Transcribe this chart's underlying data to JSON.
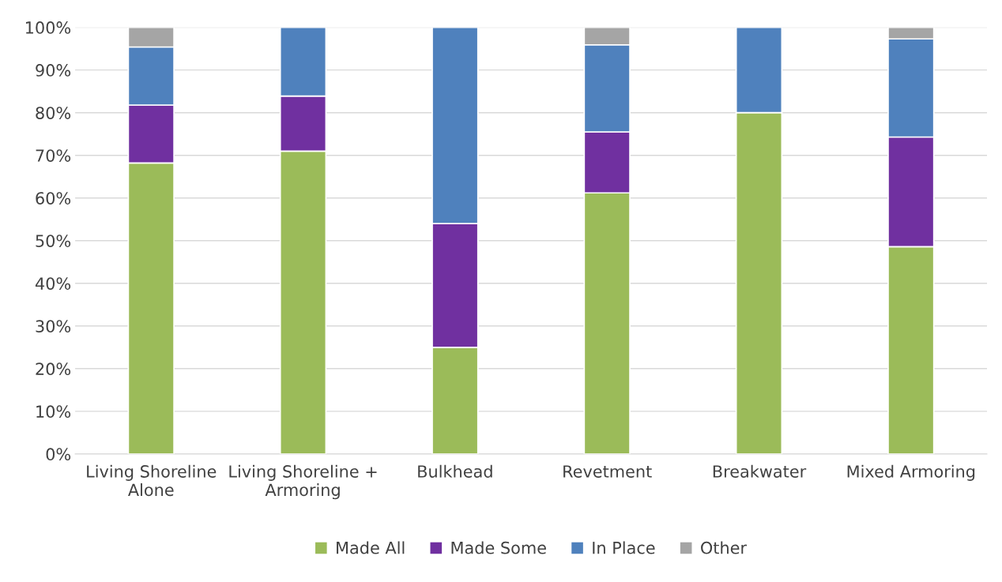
{
  "chart_data": {
    "type": "bar",
    "stacked": true,
    "categories": [
      "Living Shoreline\nAlone",
      "Living Shoreline +\nArmoring",
      "Bulkhead",
      "Revetment",
      "Breakwater",
      "Mixed Armoring"
    ],
    "series": [
      {
        "name": "Made All",
        "color": "#9bbb59",
        "values": [
          68.2,
          71.0,
          25.0,
          61.2,
          80.0,
          48.6
        ]
      },
      {
        "name": "Made Some",
        "color": "#7030a0",
        "values": [
          13.6,
          12.9,
          29.0,
          14.3,
          0,
          25.7
        ]
      },
      {
        "name": "In Place",
        "color": "#4f81bd",
        "values": [
          13.6,
          16.1,
          46.0,
          20.4,
          20.0,
          23.0
        ]
      },
      {
        "name": "Other",
        "color": "#a5a5a5",
        "values": [
          4.6,
          0,
          0,
          4.1,
          0,
          2.7
        ]
      }
    ],
    "ylim": [
      0,
      100
    ],
    "yticks": [
      {
        "value": 0,
        "label": "0%"
      },
      {
        "value": 10,
        "label": "10%"
      },
      {
        "value": 20,
        "label": "20%"
      },
      {
        "value": 30,
        "label": "30%"
      },
      {
        "value": 40,
        "label": "40%"
      },
      {
        "value": 50,
        "label": "50%"
      },
      {
        "value": 60,
        "label": "60%"
      },
      {
        "value": 70,
        "label": "70%"
      },
      {
        "value": 80,
        "label": "80%"
      },
      {
        "value": 90,
        "label": "90%"
      },
      {
        "value": 100,
        "label": "100%"
      }
    ],
    "grid": "y",
    "legend": "bottom"
  }
}
